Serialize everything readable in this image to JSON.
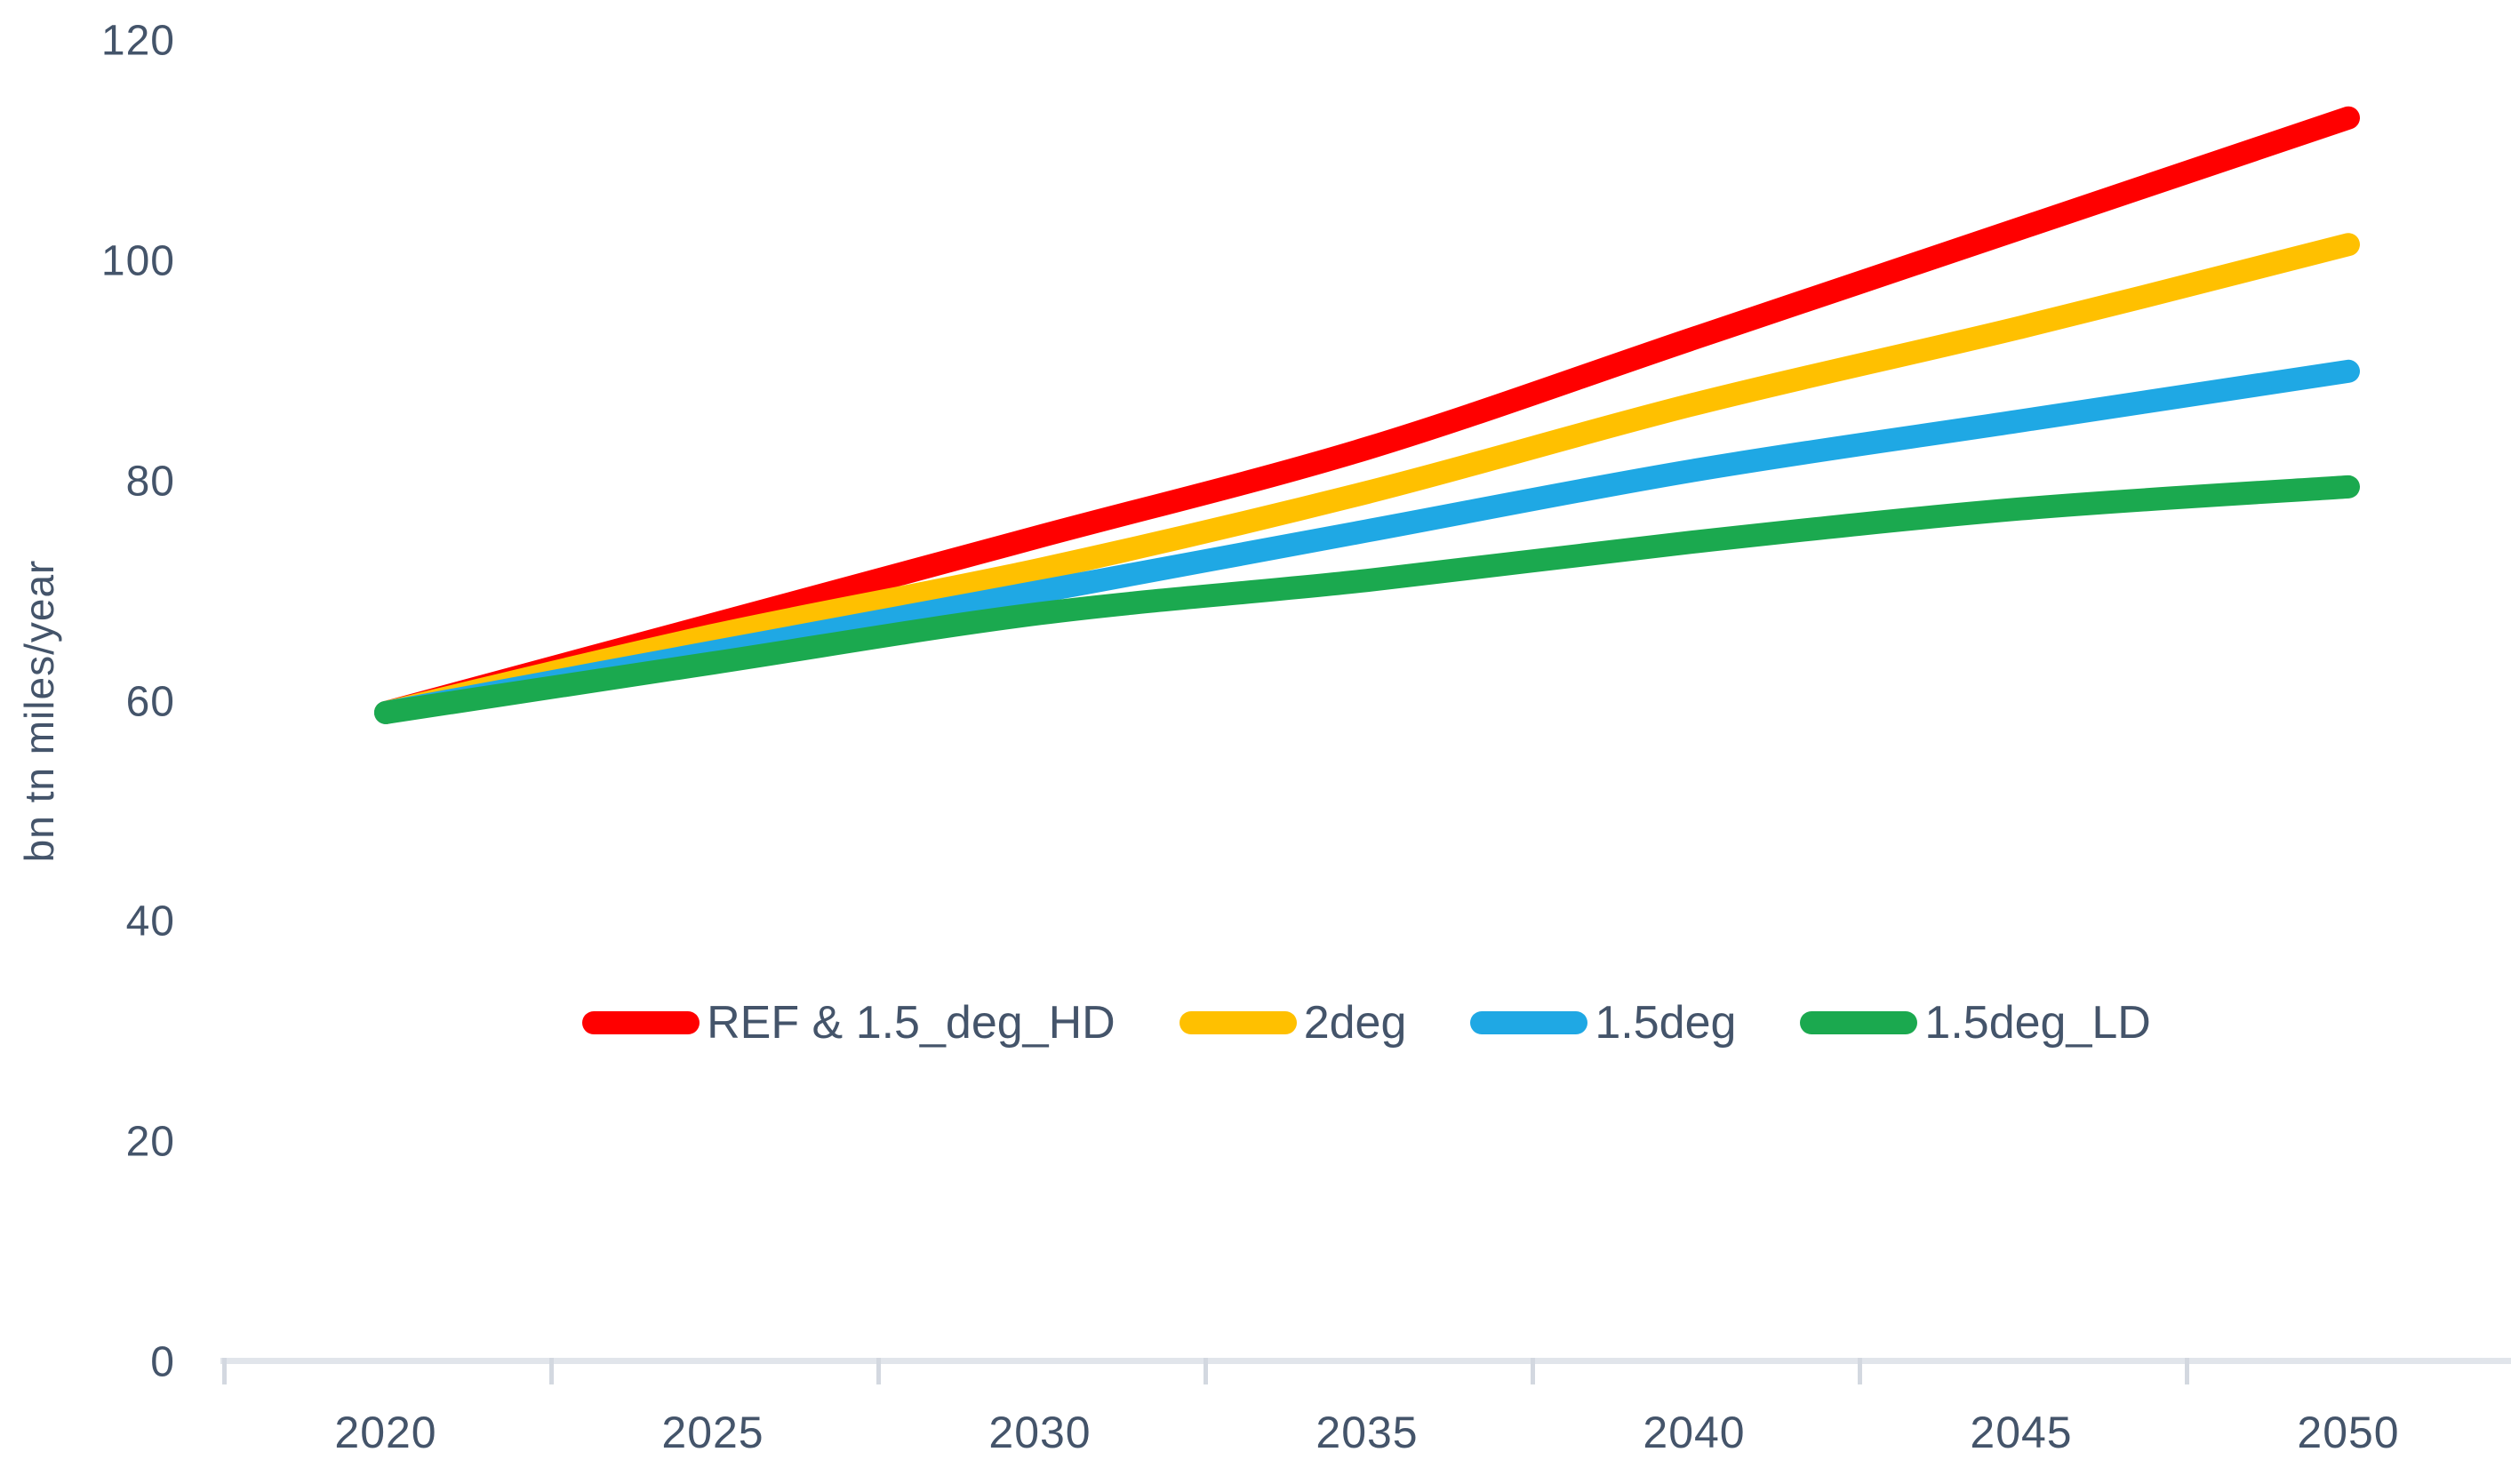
{
  "chart_data": {
    "type": "line",
    "title": "",
    "xlabel": "",
    "ylabel": "bn tn miles/year",
    "x": [
      2020,
      2025,
      2030,
      2035,
      2040,
      2045,
      2050
    ],
    "y_ticks": [
      0,
      20,
      40,
      60,
      80,
      100,
      120
    ],
    "ylim": [
      0,
      120
    ],
    "grid": false,
    "legend_position": "inside-center",
    "line_style": "smooth",
    "series": [
      {
        "name": "REF & 1.5_deg_HD",
        "color": "#FF0000",
        "values": [
          59,
          67,
          75,
          83,
          93,
          103,
          113
        ]
      },
      {
        "name": "2deg",
        "color": "#FFC000",
        "values": [
          59,
          66,
          72,
          79,
          87,
          94,
          101.5
        ]
      },
      {
        "name": "1.5deg",
        "color": "#1FA8E4",
        "values": [
          59,
          64.5,
          70,
          75.5,
          81,
          85.5,
          90
        ]
      },
      {
        "name": "1.5deg_LD",
        "color": "#1BA94F",
        "values": [
          59,
          63.5,
          68,
          71,
          74.5,
          77.5,
          79.5
        ]
      }
    ]
  },
  "colors": {
    "text": "#44546A",
    "axis_line": "#E1E5EB",
    "tick_mark": "#D3D8E0",
    "background": "#FFFFFF"
  }
}
